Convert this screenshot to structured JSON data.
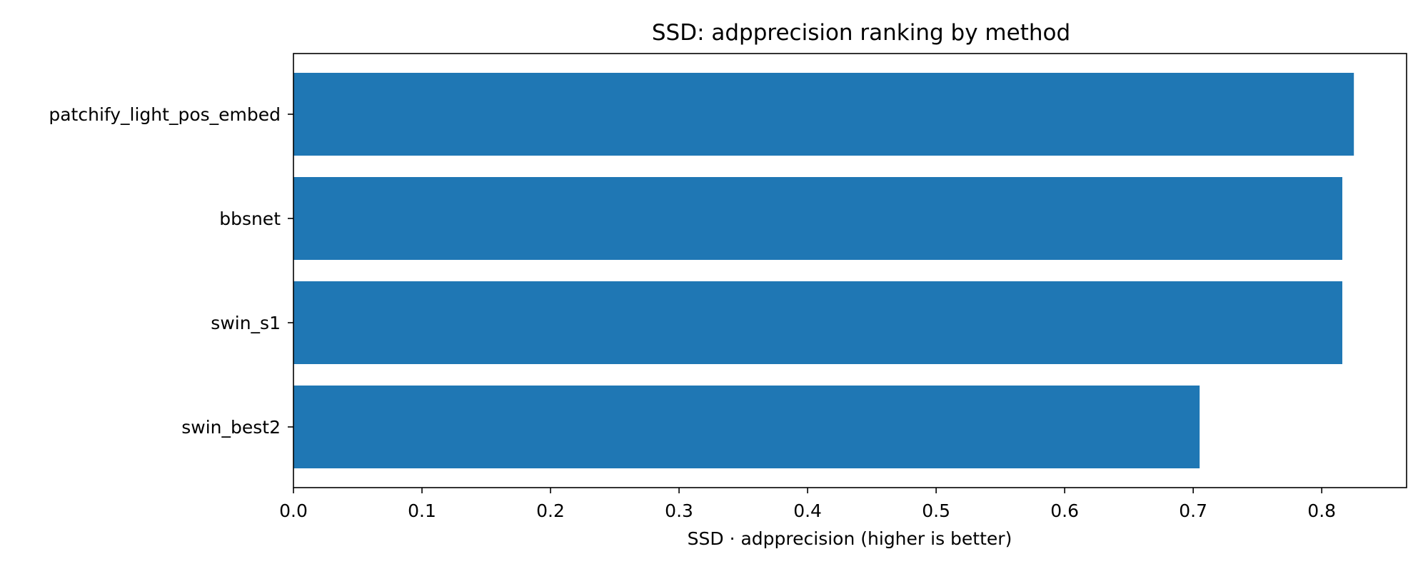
{
  "chart_data": {
    "type": "bar",
    "orientation": "horizontal",
    "title": "SSD: adpprecision ranking by method",
    "xlabel": "SSD · adpprecision (higher is better)",
    "ylabel": "",
    "categories": [
      "patchify_light_pos_embed",
      "bbsnet",
      "swin_s1",
      "swin_best2"
    ],
    "values": [
      0.825,
      0.816,
      0.816,
      0.705
    ],
    "xlim": [
      0,
      0.866
    ],
    "xticks": [
      0.0,
      0.1,
      0.2,
      0.3,
      0.4,
      0.5,
      0.6,
      0.7,
      0.8
    ],
    "xtick_labels": [
      "0.0",
      "0.1",
      "0.2",
      "0.3",
      "0.4",
      "0.5",
      "0.6",
      "0.7",
      "0.8"
    ],
    "grid": false,
    "bar_color": "#1f77b4"
  }
}
